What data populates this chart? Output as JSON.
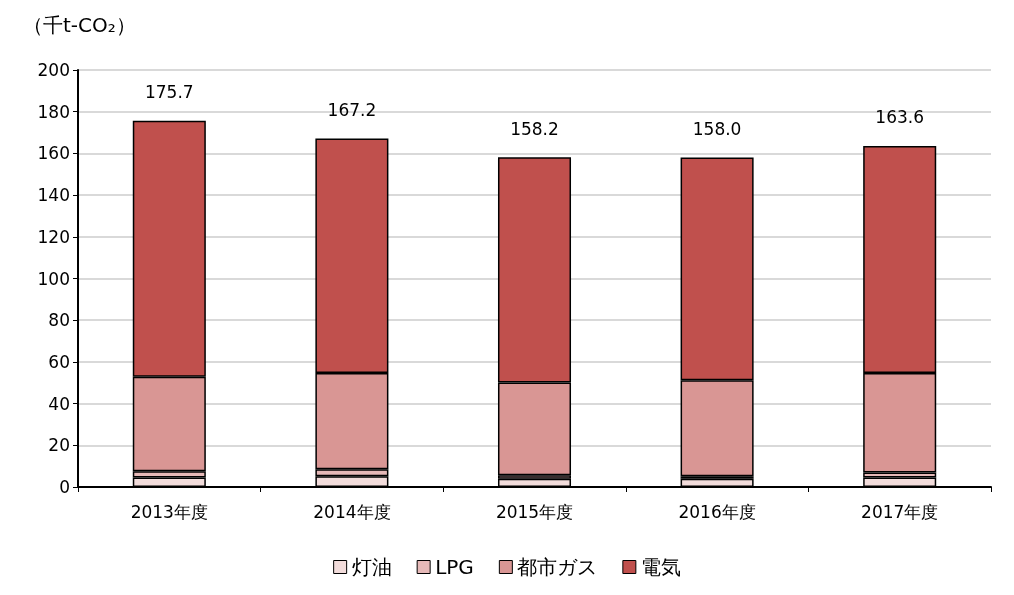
{
  "chart_data": {
    "type": "bar",
    "stacked": true,
    "ylabel": "（千t-CO₂）",
    "categories": [
      "2013年度",
      "2014年度",
      "2015年度",
      "2016年度",
      "2017年度"
    ],
    "series": [
      {
        "name": "灯油",
        "color": "#f2dcdb",
        "values": [
          4.6,
          5.1,
          4.0,
          4.0,
          4.6
        ]
      },
      {
        "name": "LPG",
        "color": "#e6b9b8",
        "values": [
          3.0,
          3.4,
          1.6,
          1.2,
          2.4
        ]
      },
      {
        "name": "都市ガス",
        "color": "#d99694",
        "values": [
          45.3,
          46.2,
          44.5,
          46.0,
          47.7
        ]
      },
      {
        "name": "電気",
        "color": "#c0504d",
        "values": [
          122.8,
          112.5,
          108.1,
          106.8,
          108.9
        ]
      }
    ],
    "totals": [
      "175.7",
      "167.2",
      "158.2",
      "158.0",
      "163.6"
    ],
    "ylim": [
      0,
      200
    ],
    "yticks": [
      0,
      20,
      40,
      60,
      80,
      100,
      120,
      140,
      160,
      180,
      200
    ],
    "grid": "y",
    "legend": "bottom"
  }
}
